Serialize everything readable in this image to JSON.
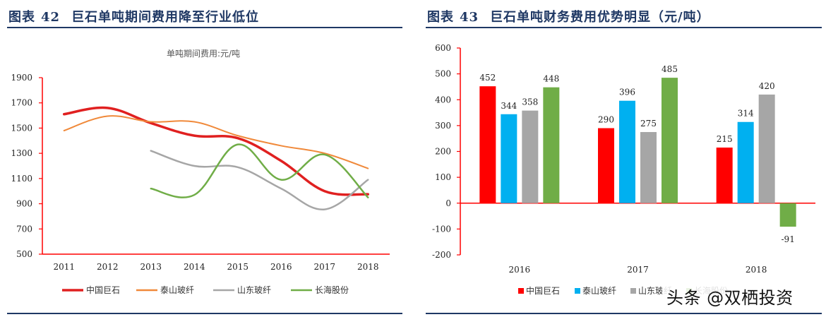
{
  "colors": {
    "accent_navy": "#1f3864",
    "axis_red": "#ff0000",
    "cjs": "#e02020",
    "taishan": "#f0893a",
    "shandong": "#a6a6a6",
    "changhai": "#70ad47",
    "bar_cjs": "#ff0000",
    "bar_taishan": "#00b0f0",
    "bar_shandong": "#a6a6a6",
    "bar_changhai": "#70ad47"
  },
  "figure_left": {
    "label": "图表",
    "number": "42",
    "title": "巨石单吨期间费用降至行业低位"
  },
  "figure_right": {
    "label": "图表",
    "number": "43",
    "title": "巨石单吨财务费用优势明显（元/吨）"
  },
  "watermark": "头条 @双栖投资",
  "chart_data": [
    {
      "type": "line",
      "title": "单吨期间费用:元/吨",
      "x": [
        "2011",
        "2012",
        "2013",
        "2014",
        "2015",
        "2016",
        "2017",
        "2018"
      ],
      "ylim": [
        500,
        1900
      ],
      "yticks": [
        500,
        700,
        900,
        1100,
        1300,
        1500,
        1700,
        1900
      ],
      "grid": false,
      "legend_position": "bottom",
      "series": [
        {
          "name": "中国巨石",
          "color": "#e02020",
          "width": 3.5,
          "values": [
            1610,
            1660,
            1540,
            1440,
            1420,
            1240,
            1000,
            975
          ]
        },
        {
          "name": "泰山玻纤",
          "color": "#f0893a",
          "width": 2,
          "values": [
            1480,
            1595,
            1550,
            1550,
            1440,
            1360,
            1300,
            1180
          ]
        },
        {
          "name": "山东玻纤",
          "color": "#a6a6a6",
          "width": 2.5,
          "values": [
            null,
            null,
            1320,
            1200,
            1190,
            1020,
            855,
            1090
          ]
        },
        {
          "name": "长海股份",
          "color": "#70ad47",
          "width": 2.5,
          "values": [
            null,
            null,
            1020,
            970,
            1370,
            1090,
            1290,
            950
          ]
        }
      ]
    },
    {
      "type": "bar",
      "categories": [
        "2016",
        "2017",
        "2018"
      ],
      "ylim": [
        -200,
        600
      ],
      "yticks": [
        -200,
        -100,
        0,
        100,
        200,
        300,
        400,
        500,
        600
      ],
      "grid": false,
      "legend_position": "bottom",
      "series": [
        {
          "name": "中国巨石",
          "color": "#ff0000",
          "values": [
            452,
            290,
            215
          ]
        },
        {
          "name": "泰山玻纤",
          "color": "#00b0f0",
          "values": [
            344,
            396,
            314
          ]
        },
        {
          "name": "山东玻纤",
          "color": "#a6a6a6",
          "values": [
            358,
            275,
            420
          ]
        },
        {
          "name": "长海股份",
          "color": "#70ad47",
          "values": [
            448,
            485,
            -91
          ]
        }
      ]
    }
  ]
}
